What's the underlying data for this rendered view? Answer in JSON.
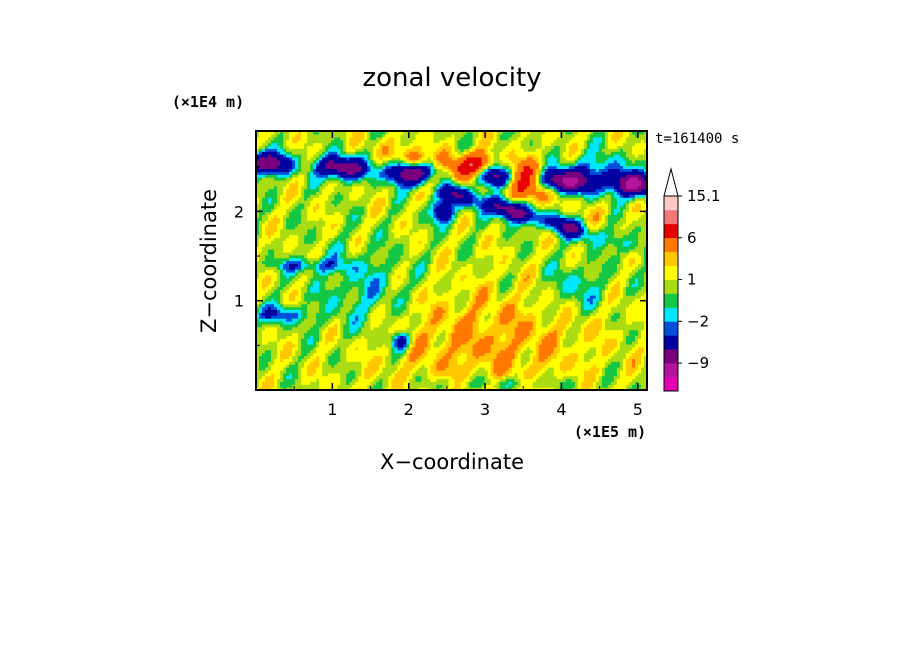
{
  "chart_data": {
    "type": "heatmap",
    "title": "zonal velocity",
    "xlabel": "X−coordinate",
    "ylabel": "Z−coordinate",
    "x_scale_label": "(×1E5 m)",
    "y_scale_label": "(×1E4 m)",
    "time_label": "t=161400 s",
    "xlim": [
      0,
      5.12
    ],
    "ylim": [
      0,
      2.9
    ],
    "x_ticks": [
      1,
      2,
      3,
      4,
      5
    ],
    "y_ticks": [
      1,
      2
    ],
    "x_tick_labels": [
      "1",
      "2",
      "3",
      "4",
      "5"
    ],
    "y_tick_labels": [
      "1",
      "2"
    ],
    "colorbar": {
      "levels": [
        -15,
        -12,
        -9,
        -6,
        -3,
        -2,
        -1,
        0,
        1,
        2,
        3,
        6,
        9,
        12,
        15.1
      ],
      "tick_labels": [
        "15.1",
        "6",
        "1",
        "−2",
        "−9"
      ],
      "tick_values": [
        15.1,
        6,
        1,
        -2,
        -9
      ],
      "colors": [
        "#e600b4",
        "#b4149b",
        "#78007d",
        "#0000a0",
        "#0050dc",
        "#00e6ff",
        "#14c846",
        "#aadc14",
        "#ffff00",
        "#ffc800",
        "#ff7800",
        "#e60000",
        "#f07878",
        "#ffc8c8"
      ],
      "top_arrow": true
    },
    "field_features": [
      {
        "type": "band",
        "sign": "negative",
        "from": [
          0.0,
          2.45
        ],
        "to": [
          1.6,
          2.6
        ]
      },
      {
        "type": "band",
        "sign": "negative",
        "from": [
          2.2,
          2.3
        ],
        "to": [
          4.4,
          1.75
        ]
      },
      {
        "type": "blob",
        "sign": "positive",
        "center": [
          2.9,
          2.5
        ]
      },
      {
        "type": "blob",
        "sign": "positive",
        "center": [
          2.1,
          2.55
        ]
      },
      {
        "type": "blob",
        "sign": "positive",
        "center": [
          2.3,
          2.35
        ]
      },
      {
        "type": "blob",
        "sign": "positive",
        "center": [
          3.6,
          2.4
        ]
      },
      {
        "type": "region",
        "sign": "weak-positive",
        "center": [
          3.1,
          0.5
        ]
      },
      {
        "type": "region",
        "sign": "near-zero",
        "center": [
          1.4,
          1.1
        ]
      }
    ]
  }
}
